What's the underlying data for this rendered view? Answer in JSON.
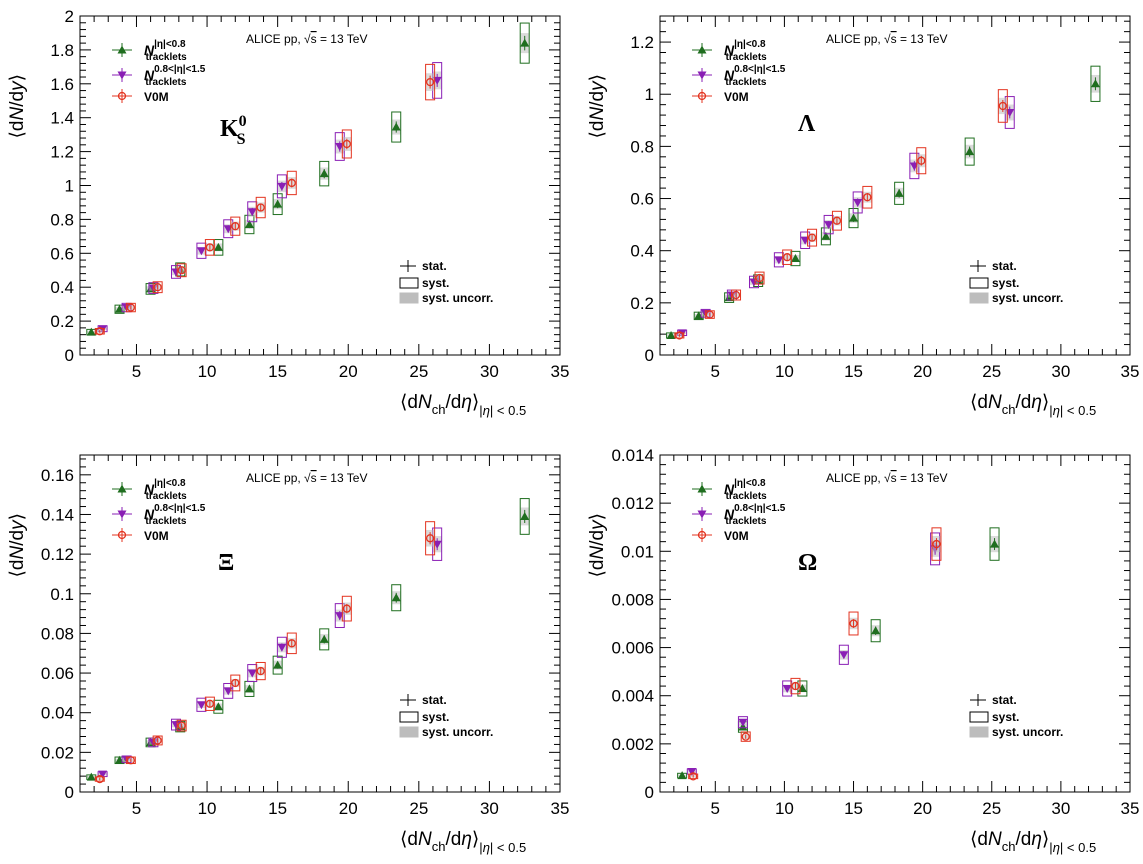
{
  "chart_data": [
    {
      "type": "scatter",
      "particle": "K",
      "particle_sup": "0",
      "particle_sub": "S",
      "header": "ALICE pp, √s = 13 TeV",
      "xlabel": "⟨dN_ch/dη⟩_|η| < 0.5",
      "ylabel": "⟨dN/dy⟩",
      "xlim": [
        1,
        35
      ],
      "ylim": [
        0,
        2
      ],
      "xticks": [
        "5",
        "10",
        "15",
        "20",
        "25",
        "30",
        "35"
      ],
      "yticks": [
        "0",
        "0.2",
        "0.4",
        "0.6",
        "0.8",
        "1",
        "1.2",
        "1.4",
        "1.6",
        "1.8",
        "2"
      ],
      "series": [
        {
          "name": "N_tracklets |η|<0.8",
          "color": "#1f6e1f",
          "marker": "triangle-up",
          "x": [
            1.8,
            3.8,
            6.0,
            8.1,
            10.8,
            13.0,
            15.0,
            18.3,
            23.4,
            32.5
          ],
          "y": [
            0.135,
            0.27,
            0.39,
            0.505,
            0.635,
            0.77,
            0.89,
            1.07,
            1.345,
            1.84
          ]
        },
        {
          "name": "N_tracklets 0.8<|η|<1.5",
          "color": "#8a1fb5",
          "marker": "triangle-down",
          "x": [
            2.6,
            4.3,
            6.2,
            7.8,
            9.6,
            11.5,
            13.2,
            15.3,
            19.4,
            26.3
          ],
          "y": [
            0.155,
            0.28,
            0.395,
            0.49,
            0.615,
            0.745,
            0.845,
            0.995,
            1.23,
            1.62
          ]
        },
        {
          "name": "V0M",
          "color": "#e3331f",
          "marker": "circle",
          "x": [
            2.4,
            4.6,
            6.5,
            8.2,
            10.2,
            12.0,
            13.8,
            16.0,
            19.9,
            25.8
          ],
          "y": [
            0.14,
            0.28,
            0.4,
            0.5,
            0.635,
            0.76,
            0.87,
            1.015,
            1.245,
            1.61
          ]
        }
      ],
      "legend": [
        "tracklets",
        "tracklets",
        "V0M"
      ],
      "legend_sup": [
        "|η|<0.8",
        "0.8<|η|<1.5",
        ""
      ],
      "stat_legend": [
        "stat.",
        "syst.",
        "syst. uncorr."
      ]
    },
    {
      "type": "scatter",
      "particle": "Λ",
      "particle_sup": "",
      "particle_sub": "",
      "header": "ALICE pp, √s = 13 TeV",
      "xlabel": "⟨dN_ch/dη⟩_|η| < 0.5",
      "ylabel": "⟨dN/dy⟩",
      "xlim": [
        1,
        35
      ],
      "ylim": [
        0,
        1.3
      ],
      "xticks": [
        "5",
        "10",
        "15",
        "20",
        "25",
        "30",
        "35"
      ],
      "yticks": [
        "0",
        "0.2",
        "0.4",
        "0.6",
        "0.8",
        "1",
        "1.2"
      ],
      "series": [
        {
          "name": "N_tracklets |η|<0.8",
          "color": "#1f6e1f",
          "marker": "triangle-up",
          "x": [
            1.8,
            3.8,
            6.0,
            8.1,
            10.8,
            13.0,
            15.0,
            18.3,
            23.4,
            32.5
          ],
          "y": [
            0.075,
            0.15,
            0.22,
            0.285,
            0.37,
            0.455,
            0.525,
            0.62,
            0.78,
            1.04
          ]
        },
        {
          "name": "N_tracklets 0.8<|η|<1.5",
          "color": "#8a1fb5",
          "marker": "triangle-down",
          "x": [
            2.6,
            4.3,
            6.2,
            7.8,
            9.6,
            11.5,
            13.2,
            15.3,
            19.4,
            26.3
          ],
          "y": [
            0.085,
            0.16,
            0.23,
            0.28,
            0.365,
            0.44,
            0.5,
            0.585,
            0.725,
            0.93
          ]
        },
        {
          "name": "V0M",
          "color": "#e3331f",
          "marker": "circle",
          "x": [
            2.4,
            4.6,
            6.5,
            8.2,
            10.2,
            12.0,
            13.8,
            16.0,
            19.9,
            25.8
          ],
          "y": [
            0.075,
            0.155,
            0.23,
            0.295,
            0.375,
            0.45,
            0.515,
            0.605,
            0.745,
            0.955
          ]
        }
      ],
      "legend": [
        "tracklets",
        "tracklets",
        "V0M"
      ],
      "legend_sup": [
        "|η|<0.8",
        "0.8<|η|<1.5",
        ""
      ],
      "stat_legend": [
        "stat.",
        "syst.",
        "syst. uncorr."
      ]
    },
    {
      "type": "scatter",
      "particle": "Ξ",
      "particle_sup": "",
      "particle_sub": "",
      "header": "ALICE pp, √s = 13 TeV",
      "xlabel": "⟨dN_ch/dη⟩_|η| < 0.5",
      "ylabel": "⟨dN/dy⟩",
      "xlim": [
        1,
        35
      ],
      "ylim": [
        0,
        0.17
      ],
      "xticks": [
        "5",
        "10",
        "15",
        "20",
        "25",
        "30",
        "35"
      ],
      "yticks": [
        "0",
        "0.02",
        "0.04",
        "0.06",
        "0.08",
        "0.1",
        "0.12",
        "0.14",
        "0.16"
      ],
      "series": [
        {
          "name": "N_tracklets |η|<0.8",
          "color": "#1f6e1f",
          "marker": "triangle-up",
          "x": [
            1.8,
            3.8,
            6.0,
            8.1,
            10.8,
            13.0,
            15.0,
            18.3,
            23.4,
            32.5
          ],
          "y": [
            0.0075,
            0.016,
            0.025,
            0.033,
            0.043,
            0.052,
            0.064,
            0.077,
            0.098,
            0.139
          ]
        },
        {
          "name": "N_tracklets 0.8<|η|<1.5",
          "color": "#8a1fb5",
          "marker": "triangle-down",
          "x": [
            2.6,
            4.3,
            6.2,
            7.8,
            9.6,
            11.5,
            13.2,
            15.3,
            19.4,
            26.3
          ],
          "y": [
            0.009,
            0.0165,
            0.025,
            0.034,
            0.044,
            0.051,
            0.06,
            0.073,
            0.089,
            0.125
          ]
        },
        {
          "name": "V0M",
          "color": "#e3331f",
          "marker": "circle",
          "x": [
            2.4,
            4.6,
            6.5,
            8.2,
            10.2,
            12.0,
            13.8,
            16.0,
            19.9,
            25.8
          ],
          "y": [
            0.0065,
            0.016,
            0.026,
            0.0335,
            0.0445,
            0.055,
            0.061,
            0.075,
            0.0925,
            0.128
          ]
        }
      ],
      "legend": [
        "tracklets",
        "tracklets",
        "V0M"
      ],
      "legend_sup": [
        "|η|<0.8",
        "0.8<|η|<1.5",
        ""
      ],
      "stat_legend": [
        "stat.",
        "syst.",
        "syst. uncorr."
      ]
    },
    {
      "type": "scatter",
      "particle": "Ω",
      "particle_sup": "",
      "particle_sub": "",
      "header": "ALICE pp, √s = 13 TeV",
      "xlabel": "⟨dN_ch/dη⟩_|η| < 0.5",
      "ylabel": "⟨dN/dy⟩",
      "xlim": [
        1,
        35
      ],
      "ylim": [
        0,
        0.014
      ],
      "xticks": [
        "5",
        "10",
        "15",
        "20",
        "25",
        "30",
        "35"
      ],
      "yticks": [
        "0",
        "0.002",
        "0.004",
        "0.006",
        "0.008",
        "0.01",
        "0.012",
        "0.014"
      ],
      "series": [
        {
          "name": "N_tracklets |η|<0.8",
          "color": "#1f6e1f",
          "marker": "triangle-up",
          "x": [
            2.6,
            7.0,
            11.3,
            16.6,
            25.2
          ],
          "y": [
            0.00068,
            0.0027,
            0.0043,
            0.0067,
            0.0103
          ]
        },
        {
          "name": "N_tracklets 0.8<|η|<1.5",
          "color": "#8a1fb5",
          "marker": "triangle-down",
          "x": [
            3.3,
            7.0,
            10.2,
            14.3,
            20.9
          ],
          "y": [
            0.00085,
            0.0029,
            0.0043,
            0.0057,
            0.0101
          ]
        },
        {
          "name": "V0M",
          "color": "#e3331f",
          "marker": "circle",
          "x": [
            3.4,
            7.2,
            10.8,
            15.0,
            21.0
          ],
          "y": [
            0.00065,
            0.0023,
            0.0044,
            0.007,
            0.0103
          ]
        }
      ],
      "legend": [
        "tracklets",
        "tracklets",
        "V0M"
      ],
      "legend_sup": [
        "|η|<0.8",
        "0.8<|η|<1.5",
        ""
      ],
      "stat_legend": [
        "stat.",
        "syst.",
        "syst. uncorr."
      ]
    }
  ]
}
